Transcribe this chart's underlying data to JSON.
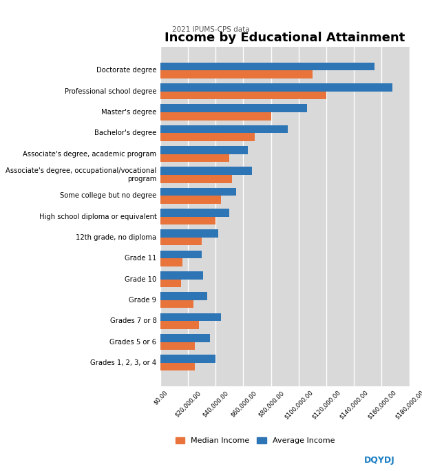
{
  "title": "Income by Educational Attainment",
  "subtitle": "2021 IPUMS-CPS data",
  "categories": [
    "Doctorate degree",
    "Professional school degree",
    "Master's degree",
    "Bachelor's degree",
    "Associate's degree, academic program",
    "Associate's degree, occupational/vocational\nprogram",
    "Some college but no degree",
    "High school diploma or equivalent",
    "12th grade, no diploma",
    "Grade 11",
    "Grade 10",
    "Grade 9",
    "Grades 7 or 8",
    "Grades 5 or 6",
    "Grades 1, 2, 3, or 4"
  ],
  "median_income": [
    110000,
    120000,
    80000,
    68000,
    50000,
    52000,
    44000,
    40000,
    30000,
    16000,
    15000,
    24000,
    28000,
    25000,
    25000
  ],
  "average_income": [
    155000,
    168000,
    106000,
    92000,
    63000,
    66000,
    55000,
    50000,
    42000,
    30000,
    31000,
    34000,
    44000,
    36000,
    40000
  ],
  "median_color": "#E8743B",
  "average_color": "#2E75B6",
  "background_color": "#D9D9D9",
  "xlim": [
    0,
    180000
  ],
  "xtick_step": 20000,
  "bar_height": 0.38,
  "fig_bg": "#FFFFFF",
  "legend_labels": [
    "Median Income",
    "Average Income"
  ]
}
